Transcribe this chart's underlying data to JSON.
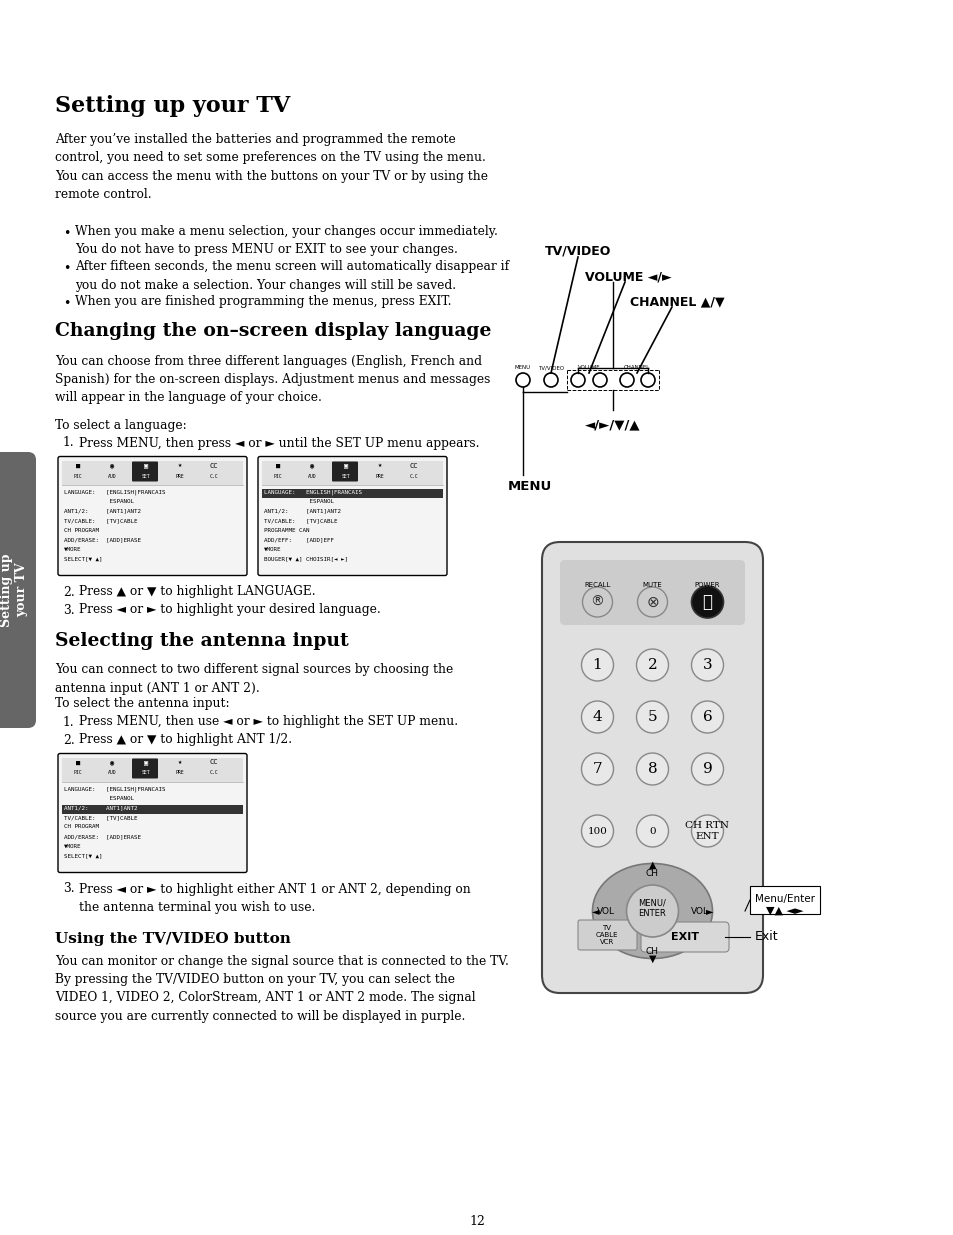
{
  "title": "Setting up your TV",
  "background_color": "#ffffff",
  "text_color": "#000000",
  "page_number": "12",
  "sidebar_text": "Setting up\nyour TV",
  "sidebar_bg": "#666666",
  "intro_text": "After you’ve installed the batteries and programmed the remote\ncontrol, you need to set some preferences on the TV using the menu.\nYou can access the menu with the buttons on your TV or by using the\nremote control.",
  "bullets": [
    "When you make a menu selection, your changes occur immediately.\nYou do not have to press MENU or EXIT to see your changes.",
    "After fifteen seconds, the menu screen will automatically disappear if\nyou do not make a selection. Your changes will still be saved.",
    "When you are finished programming the menus, press EXIT."
  ],
  "section2_title": "Changing the on–screen display language",
  "section2_intro": "You can choose from three different languages (English, French and\nSpanish) for the on-screen displays. Adjustment menus and messages\nwill appear in the language of your choice.",
  "to_select_lang": "To select a language:",
  "lang_steps": [
    "Press MENU, then press ◄ or ► until the SET UP menu appears.",
    "Press ▲ or ▼ to highlight LANGUAGE.",
    "Press ◄ or ► to highlight your desired language."
  ],
  "section3_title": "Selecting the antenna input",
  "section3_intro": "You can connect to two different signal sources by choosing the\nantenna input (ANT 1 or ANT 2).",
  "to_select_ant": "To select the antenna input:",
  "ant_steps": [
    "Press MENU, then use ◄ or ► to highlight the SET UP menu.",
    "Press ▲ or ▼ to highlight ANT 1/2."
  ],
  "ant_step3": "Press ◄ or ► to highlight either ANT 1 or ANT 2, depending on\nthe antenna terminal you wish to use.",
  "section4_title": "Using the TV/VIDEO button",
  "section4_text": "You can monitor or change the signal source that is connected to the TV.\nBy pressing the TV/VIDEO button on your TV, you can select the\nVIDEO 1, VIDEO 2, ColorStream, ANT 1 or ANT 2 mode. The signal\nsource you are currently connected to will be displayed in purple.",
  "tv_label": "TV/VIDEO",
  "vol_label": "VOLUME ◄/►",
  "ch_label": "CHANNEL ▲/▼",
  "menu_label": "MENU",
  "nav_label": "◄/►/▼/▲",
  "menu_enter_label": "Menu/Enter",
  "menu_enter_nav": "▼▲ ◄►",
  "exit_label": "Exit"
}
